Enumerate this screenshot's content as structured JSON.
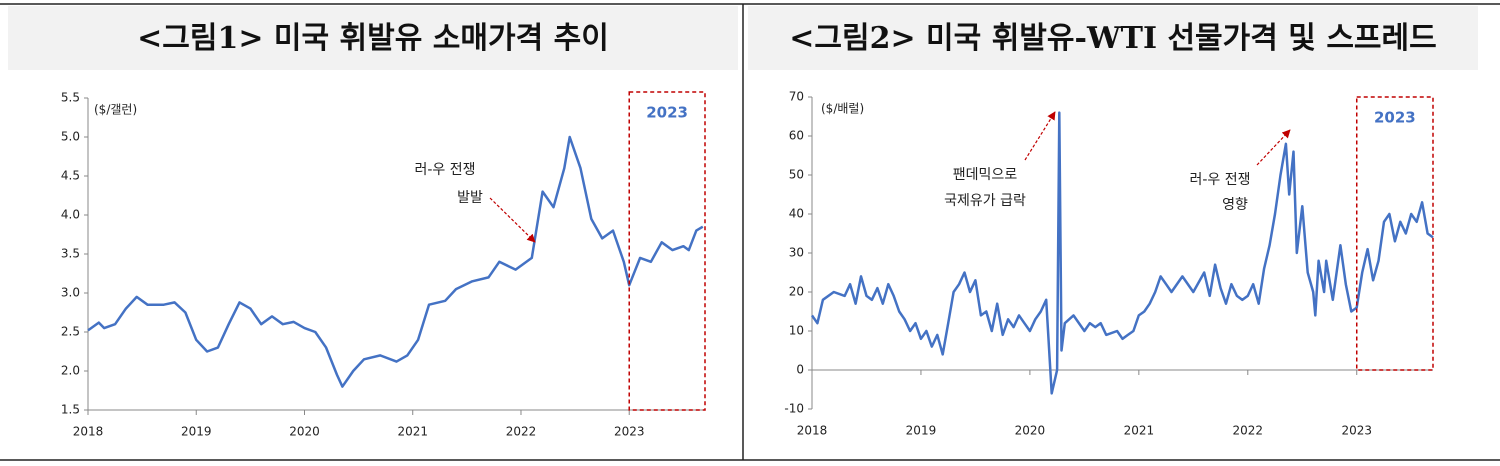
{
  "chart_data": [
    {
      "type": "line",
      "title": "<그림1> 미국 휘발유 소매가격 추이",
      "y_label": "($/갤런)",
      "color": "#4472c4",
      "annotations": [
        "러-우 전쟁",
        "발발"
      ],
      "box_label": "2023",
      "xlim": [
        2018,
        2023.7
      ],
      "xticks": [
        2018,
        2019,
        2020,
        2021,
        2022,
        2023
      ],
      "ylim": [
        1.5,
        5.5
      ],
      "yticks": [
        1.5,
        {
          "value": 2,
          "label": "2.0"
        },
        2.5,
        {
          "value": 3,
          "label": "3.0"
        },
        3.5,
        {
          "value": 4,
          "label": "4.0"
        },
        4.5,
        {
          "value": 5,
          "label": "5.0"
        },
        5.5
      ],
      "x": [
        2018.0,
        2018.1,
        2018.15,
        2018.25,
        2018.35,
        2018.45,
        2018.55,
        2018.7,
        2018.8,
        2018.9,
        2019.0,
        2019.1,
        2019.2,
        2019.3,
        2019.4,
        2019.5,
        2019.6,
        2019.7,
        2019.8,
        2019.9,
        2020.0,
        2020.1,
        2020.2,
        2020.3,
        2020.35,
        2020.45,
        2020.55,
        2020.7,
        2020.85,
        2020.95,
        2021.05,
        2021.15,
        2021.3,
        2021.4,
        2021.55,
        2021.7,
        2021.8,
        2021.95,
        2022.1,
        2022.2,
        2022.3,
        2022.4,
        2022.45,
        2022.55,
        2022.65,
        2022.75,
        2022.85,
        2022.95,
        2023.0,
        2023.1,
        2023.2,
        2023.3,
        2023.4,
        2023.5,
        2023.55,
        2023.62,
        2023.68
      ],
      "values": [
        2.52,
        2.62,
        2.55,
        2.6,
        2.8,
        2.95,
        2.85,
        2.85,
        2.88,
        2.75,
        2.4,
        2.25,
        2.3,
        2.6,
        2.88,
        2.8,
        2.6,
        2.7,
        2.6,
        2.63,
        2.55,
        2.5,
        2.3,
        1.95,
        1.8,
        2.0,
        2.15,
        2.2,
        2.12,
        2.2,
        2.4,
        2.85,
        2.9,
        3.05,
        3.15,
        3.2,
        3.4,
        3.3,
        3.45,
        4.3,
        4.1,
        4.6,
        5.0,
        4.6,
        3.95,
        3.7,
        3.8,
        3.4,
        3.1,
        3.45,
        3.4,
        3.65,
        3.55,
        3.6,
        3.55,
        3.8,
        3.85
      ]
    },
    {
      "type": "line",
      "title": "<그림2> 미국 휘발유-WTI 선물가격 및 스프레드",
      "y_label": "($/배럴)",
      "color": "#4472c4",
      "annotations": [
        "팬데믹으로",
        "국제유가 급락",
        "러-우 전쟁",
        "영향"
      ],
      "box_label": "2023",
      "xlim": [
        2018,
        2023.7
      ],
      "xticks": [
        2018,
        2019,
        2020,
        2021,
        2022,
        2023
      ],
      "ylim": [
        -10,
        70
      ],
      "yticks": [
        -10,
        0,
        10,
        20,
        30,
        40,
        50,
        60,
        70
      ],
      "x": [
        2018.0,
        2018.05,
        2018.1,
        2018.2,
        2018.3,
        2018.35,
        2018.4,
        2018.45,
        2018.5,
        2018.55,
        2018.6,
        2018.65,
        2018.7,
        2018.75,
        2018.8,
        2018.85,
        2018.9,
        2018.95,
        2019.0,
        2019.05,
        2019.1,
        2019.15,
        2019.2,
        2019.25,
        2019.3,
        2019.35,
        2019.4,
        2019.45,
        2019.5,
        2019.55,
        2019.6,
        2019.65,
        2019.7,
        2019.75,
        2019.8,
        2019.85,
        2019.9,
        2019.95,
        2020.0,
        2020.05,
        2020.1,
        2020.15,
        2020.2,
        2020.25,
        2020.27,
        2020.29,
        2020.32,
        2020.4,
        2020.5,
        2020.55,
        2020.6,
        2020.65,
        2020.7,
        2020.8,
        2020.85,
        2020.9,
        2020.95,
        2021.0,
        2021.05,
        2021.1,
        2021.15,
        2021.2,
        2021.25,
        2021.3,
        2021.4,
        2021.5,
        2021.6,
        2021.65,
        2021.7,
        2021.75,
        2021.8,
        2021.85,
        2021.9,
        2021.95,
        2022.0,
        2022.05,
        2022.1,
        2022.15,
        2022.2,
        2022.25,
        2022.3,
        2022.35,
        2022.38,
        2022.42,
        2022.45,
        2022.5,
        2022.55,
        2022.6,
        2022.62,
        2022.65,
        2022.7,
        2022.72,
        2022.78,
        2022.85,
        2022.9,
        2022.95,
        2023.0,
        2023.05,
        2023.1,
        2023.15,
        2023.2,
        2023.25,
        2023.3,
        2023.35,
        2023.4,
        2023.45,
        2023.5,
        2023.55,
        2023.6,
        2023.65,
        2023.7
      ],
      "values": [
        14,
        12,
        18,
        20,
        19,
        22,
        17,
        24,
        19,
        18,
        21,
        17,
        22,
        19,
        15,
        13,
        10,
        12,
        8,
        10,
        6,
        9,
        4,
        12,
        20,
        22,
        25,
        20,
        23,
        14,
        15,
        10,
        17,
        9,
        13,
        11,
        14,
        12,
        10,
        13,
        15,
        18,
        -6,
        0,
        66,
        5,
        12,
        14,
        10,
        12,
        11,
        12,
        9,
        10,
        8,
        9,
        10,
        14,
        15,
        17,
        20,
        24,
        22,
        20,
        24,
        20,
        25,
        19,
        27,
        21,
        17,
        22,
        19,
        18,
        19,
        22,
        17,
        26,
        32,
        40,
        50,
        58,
        45,
        56,
        30,
        42,
        25,
        20,
        14,
        28,
        20,
        28,
        18,
        32,
        22,
        15,
        16,
        25,
        31,
        23,
        28,
        38,
        40,
        33,
        38,
        35,
        40,
        38,
        43,
        35,
        34
      ]
    }
  ]
}
